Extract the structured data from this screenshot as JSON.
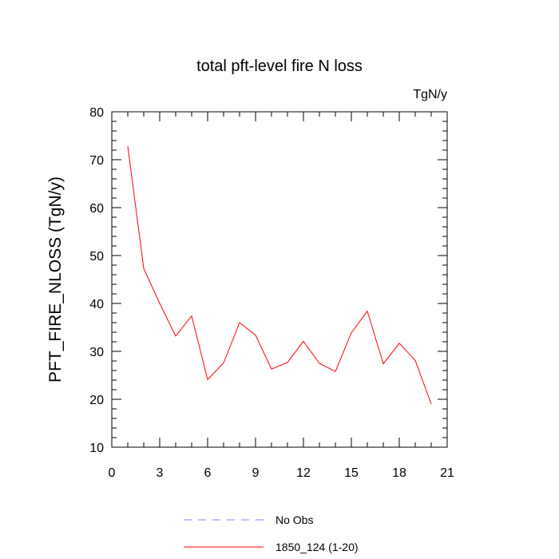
{
  "chart_data": {
    "type": "line",
    "title": "total pft-level fire N loss",
    "units_label": "TgN/y",
    "xlabel": "",
    "ylabel": "PFT_FIRE_NLOSS  (TgN/y)",
    "xlim": [
      0,
      21
    ],
    "ylim": [
      10,
      80
    ],
    "x_ticks": [
      0,
      3,
      6,
      9,
      12,
      15,
      18,
      21
    ],
    "y_ticks": [
      10,
      20,
      30,
      40,
      50,
      60,
      70,
      80
    ],
    "x_minor_step": 1,
    "y_minor_step": 2,
    "grid": false,
    "legend_position": "bottom-center",
    "series": [
      {
        "name": "1850_124 (1-20)",
        "color": "#ff0000",
        "style": "solid",
        "x": [
          1,
          2,
          3,
          4,
          5,
          6,
          7,
          8,
          9,
          10,
          11,
          12,
          13,
          14,
          15,
          16,
          17,
          18,
          19,
          20
        ],
        "values": [
          72.8,
          47.3,
          40.0,
          33.2,
          37.4,
          24.1,
          27.6,
          36.0,
          33.4,
          26.3,
          27.7,
          32.1,
          27.5,
          25.8,
          33.9,
          38.4,
          27.4,
          31.7,
          28.1,
          19.0
        ]
      }
    ],
    "legend": [
      {
        "label": "No Obs",
        "color": "#8080ff",
        "style": "dashed"
      },
      {
        "label": "1850_124 (1-20)",
        "color": "#ff0000",
        "style": "solid"
      }
    ]
  }
}
